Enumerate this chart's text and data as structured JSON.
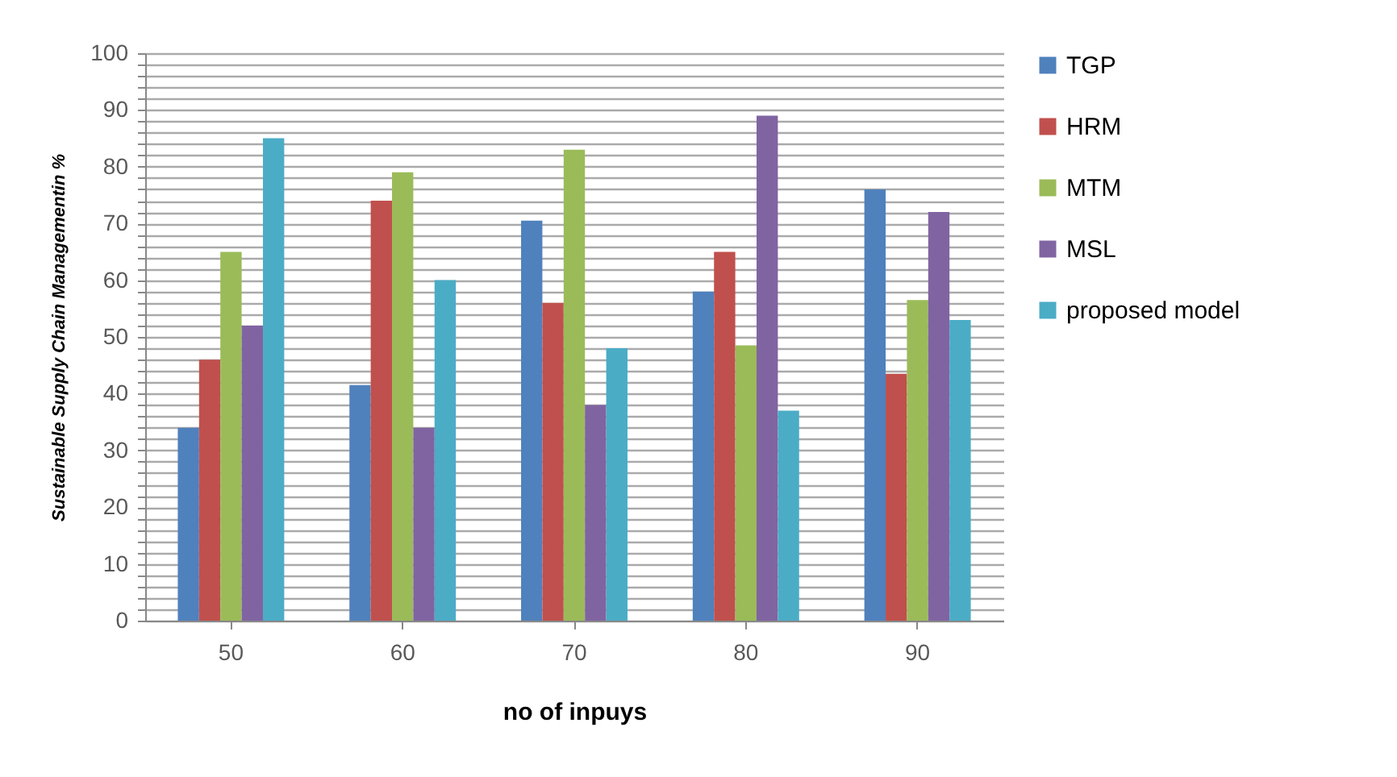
{
  "chart_data": {
    "type": "bar",
    "xlabel": "no of inpuys",
    "ylabel": "Sustainable Supply Chain Managementin %",
    "categories": [
      "50",
      "60",
      "70",
      "80",
      "90"
    ],
    "series": [
      {
        "name": "TGP",
        "color": "#4f81bd",
        "values": [
          34,
          41.5,
          70.5,
          58,
          76
        ]
      },
      {
        "name": "HRM",
        "color": "#c0504d",
        "values": [
          46,
          74,
          56,
          65,
          43.5
        ]
      },
      {
        "name": "MTM",
        "color": "#9bbb59",
        "values": [
          65,
          79,
          83,
          48.5,
          56.5
        ]
      },
      {
        "name": "MSL",
        "color": "#8064a2",
        "values": [
          52,
          34,
          38,
          89,
          72
        ]
      },
      {
        "name": "proposed model",
        "color": "#4bacc6",
        "values": [
          85,
          60,
          48,
          37,
          53
        ]
      }
    ],
    "ylim": [
      0,
      100
    ],
    "yticks": [
      0,
      {
        "value": 2,
        "label": null
      },
      {
        "value": 4,
        "label": null
      },
      {
        "value": 6,
        "label": null
      },
      {
        "value": 8,
        "label": null
      },
      10,
      {
        "value": 12,
        "label": null
      },
      {
        "value": 14,
        "label": null
      },
      {
        "value": 16,
        "label": null
      },
      {
        "value": 18,
        "label": null
      },
      20,
      {
        "value": 22,
        "label": null
      },
      {
        "value": 24,
        "label": null
      },
      {
        "value": 26,
        "label": null
      },
      {
        "value": 28,
        "label": null
      },
      30,
      {
        "value": 32,
        "label": null
      },
      {
        "value": 34,
        "label": null
      },
      {
        "value": 36,
        "label": null
      },
      {
        "value": 38,
        "label": null
      },
      40,
      {
        "value": 42,
        "label": null
      },
      {
        "value": 44,
        "label": null
      },
      {
        "value": 46,
        "label": null
      },
      {
        "value": 48,
        "label": null
      },
      50,
      {
        "value": 52,
        "label": null
      },
      {
        "value": 54,
        "label": null
      },
      {
        "value": 56,
        "label": null
      },
      {
        "value": 58,
        "label": null
      },
      60,
      {
        "value": 62,
        "label": null
      },
      {
        "value": 64,
        "label": null
      },
      {
        "value": 66,
        "label": null
      },
      {
        "value": 68,
        "label": null
      },
      70,
      {
        "value": 72,
        "label": null
      },
      {
        "value": 74,
        "label": null
      },
      {
        "value": 76,
        "label": null
      },
      {
        "value": 78,
        "label": null
      },
      80,
      {
        "value": 82,
        "label": null
      },
      {
        "value": 84,
        "label": null
      },
      {
        "value": 86,
        "label": null
      },
      {
        "value": 88,
        "label": null
      },
      90,
      {
        "value": 92,
        "label": null
      },
      {
        "value": 94,
        "label": null
      },
      {
        "value": 96,
        "label": null
      },
      {
        "value": 98,
        "label": null
      },
      100
    ],
    "grid": "y",
    "legend": "right"
  }
}
